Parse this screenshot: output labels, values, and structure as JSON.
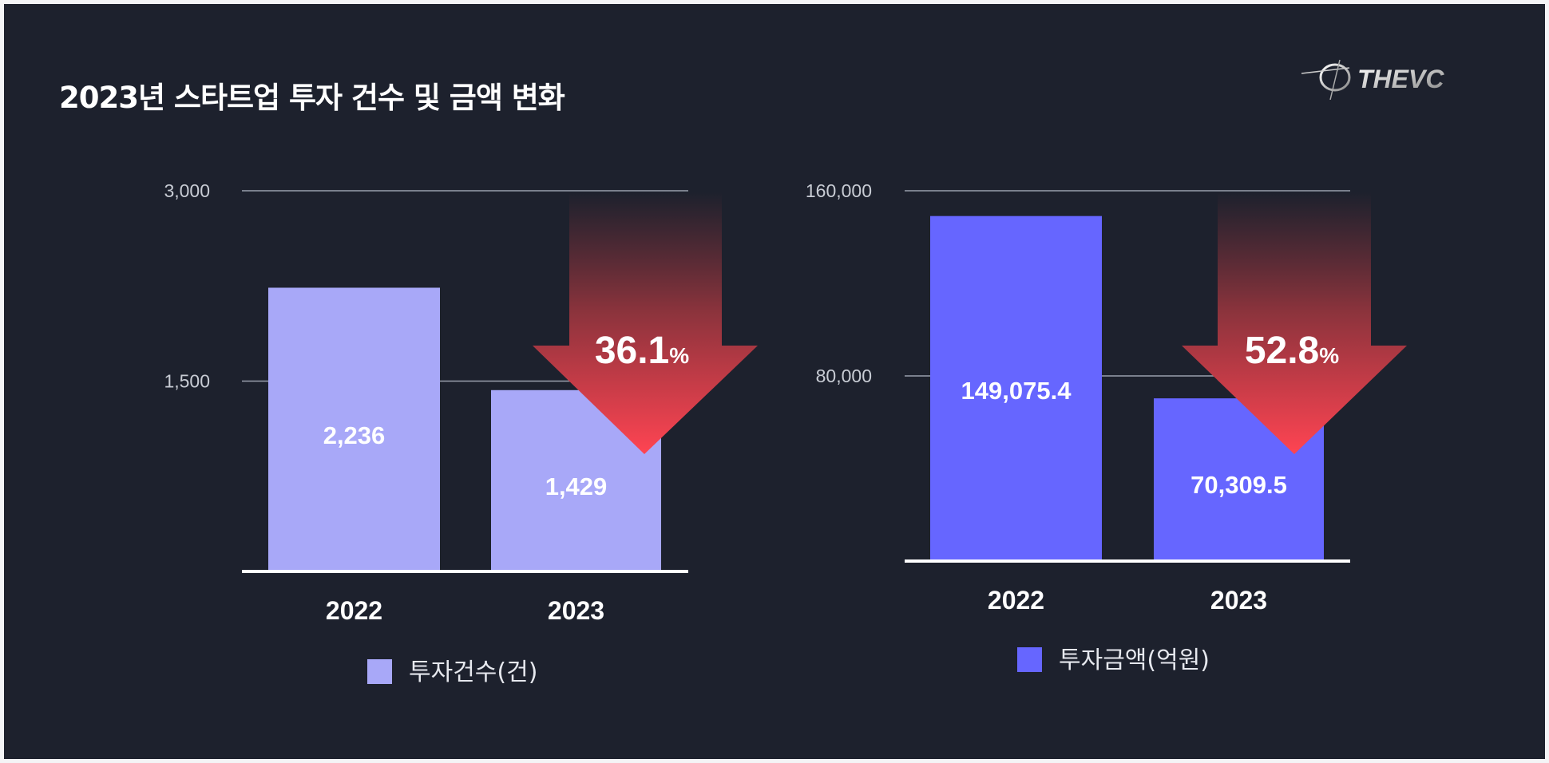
{
  "title": "2023년 스타트업 투자 건수 및 금액 변화",
  "logo_text": "THEVC",
  "colors": {
    "background": "#1d212d",
    "count_bar": "#a8a8f8",
    "amount_bar": "#6666ff",
    "arrow_top": "#1d212d",
    "arrow_bottom": "#ff4452"
  },
  "chart_data": [
    {
      "type": "bar",
      "categories": [
        "2022",
        "2023"
      ],
      "series": [
        {
          "name": "투자건수(건)",
          "values": [
            2236,
            1429
          ]
        }
      ],
      "value_labels": [
        "2,236",
        "1,429"
      ],
      "yticks": [
        1500,
        3000
      ],
      "ytick_labels": [
        "1,500",
        "3,000"
      ],
      "ylim": [
        0,
        3000
      ],
      "annotation": {
        "value": "36.1",
        "unit": "%",
        "direction": "down"
      },
      "legend": "bottom"
    },
    {
      "type": "bar",
      "categories": [
        "2022",
        "2023"
      ],
      "series": [
        {
          "name": "투자금액(억원)",
          "values": [
            149075.4,
            70309.5
          ]
        }
      ],
      "value_labels": [
        "149,075.4",
        "70,309.5"
      ],
      "yticks": [
        80000,
        160000
      ],
      "ytick_labels": [
        "80,000",
        "160,000"
      ],
      "ylim": [
        0,
        160000
      ],
      "annotation": {
        "value": "52.8",
        "unit": "%",
        "direction": "down"
      },
      "legend": "bottom"
    }
  ]
}
